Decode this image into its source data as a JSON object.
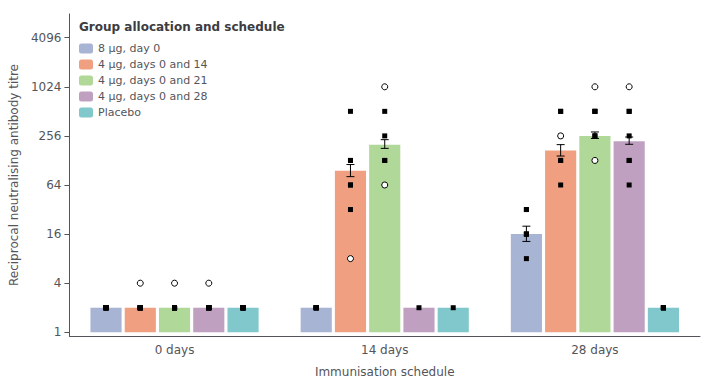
{
  "chart_data": {
    "type": "bar",
    "title": "Group allocation and schedule",
    "xlabel": "Immunisation schedule",
    "ylabel": "Reciprocal neutralising antibody titre",
    "categories": [
      "0 days",
      "14 days",
      "28 days"
    ],
    "log": "y",
    "ylim": [
      0.9,
      8000
    ],
    "yticks": [
      1,
      4,
      16,
      64,
      256,
      1024,
      4096
    ],
    "grid": false,
    "legend": "upper left",
    "series": [
      {
        "name": "8 μg, day 0",
        "color": "#a8b4d4",
        "values": [
          2.0,
          2.0,
          16.0
        ],
        "error_low": [
          0.0,
          0.0,
          3.0
        ],
        "error_high": [
          0.0,
          0.0,
          4.0
        ],
        "points_filled": [
          [
            2,
            2,
            2,
            2,
            2,
            2,
            2,
            2,
            2,
            2
          ],
          [
            2,
            2,
            2,
            2,
            2,
            2,
            2
          ],
          [
            8,
            16,
            16,
            16,
            32,
            32
          ]
        ],
        "points_open": [
          [],
          [],
          []
        ]
      },
      {
        "name": "4 μg, days 0 and 14",
        "color": "#f0a080",
        "values": [
          2.0,
          96.0,
          170.0
        ],
        "error_low": [
          0.0,
          15.0,
          25.0
        ],
        "error_high": [
          0.0,
          18.0,
          30.0
        ],
        "points_filled": [
          [
            2,
            2,
            2,
            2,
            2,
            2,
            2,
            2,
            2,
            2
          ],
          [
            32,
            64,
            64,
            128,
            128,
            512
          ],
          [
            64,
            128,
            128,
            256,
            512,
            512
          ]
        ],
        "points_open": [
          [
            4
          ],
          [
            8
          ],
          [
            256
          ]
        ]
      },
      {
        "name": "4 μg, days 0 and 21",
        "color": "#b0d898",
        "values": [
          2.0,
          200.0,
          256.0
        ],
        "error_low": [
          0.0,
          20.0,
          18.0
        ],
        "error_high": [
          0.0,
          30.0,
          30.0
        ],
        "points_filled": [
          [
            2,
            2,
            2,
            2,
            2,
            2,
            2,
            2,
            2,
            2
          ],
          [
            64,
            128,
            128,
            256,
            512
          ],
          [
            128,
            256,
            256,
            512,
            512,
            512
          ]
        ],
        "points_open": [
          [
            4
          ],
          [
            64,
            1024
          ],
          [
            128,
            1024
          ]
        ]
      },
      {
        "name": "4 μg, days 0 and 28",
        "color": "#c0a0c0",
        "values": [
          2.0,
          2.0,
          220.0
        ],
        "error_low": [
          0.0,
          0.0,
          18.0
        ],
        "error_high": [
          0.0,
          0.0,
          28.0
        ],
        "points_filled": [
          [
            2,
            2,
            2,
            2,
            2,
            2,
            2,
            2,
            2,
            2
          ],
          [
            2
          ],
          [
            64,
            128,
            128,
            256,
            512,
            512
          ]
        ],
        "points_open": [
          [
            4
          ],
          [],
          [
            1024
          ]
        ]
      },
      {
        "name": "Placebo",
        "color": "#80c8cc",
        "values": [
          2.0,
          2.0,
          2.0
        ],
        "error_low": [
          0.0,
          0.0,
          0.0
        ],
        "error_high": [
          0.0,
          0.0,
          0.0
        ],
        "points_filled": [
          [
            2,
            2,
            2,
            2,
            2,
            2,
            2,
            2,
            2,
            2
          ],
          [
            2
          ],
          [
            2,
            2,
            2,
            2,
            2,
            2
          ]
        ],
        "points_open": [
          [],
          [],
          []
        ]
      }
    ]
  }
}
